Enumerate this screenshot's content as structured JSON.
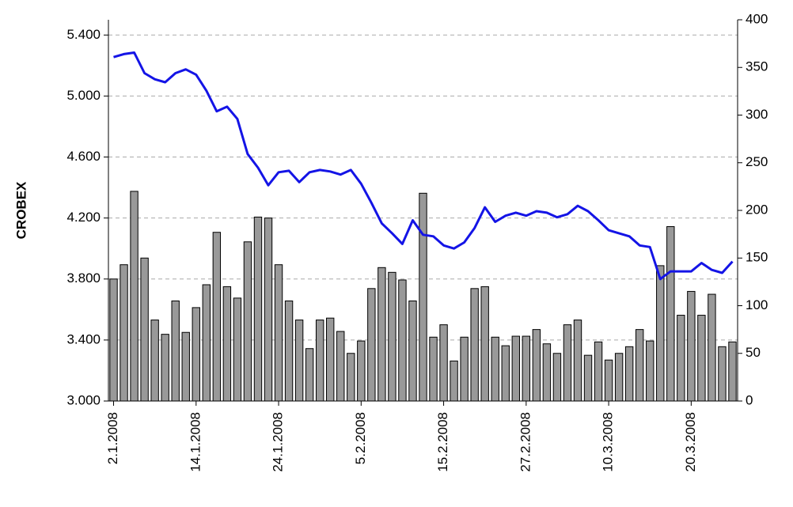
{
  "chart_data": {
    "type": "bar-line",
    "y_label": "CROBEX",
    "categories": [
      "2.1.2008",
      null,
      null,
      null,
      null,
      null,
      null,
      null,
      "14.1.2008",
      null,
      null,
      null,
      null,
      null,
      null,
      null,
      "24.1.2008",
      null,
      null,
      null,
      null,
      null,
      null,
      null,
      "5.2.2008",
      null,
      null,
      null,
      null,
      null,
      null,
      null,
      "15.2.2008",
      null,
      null,
      null,
      null,
      null,
      null,
      null,
      "27.2.2008",
      null,
      null,
      null,
      null,
      null,
      null,
      null,
      "10.3.2008",
      null,
      null,
      null,
      null,
      null,
      null,
      null,
      "20.3.2008",
      null,
      null,
      null,
      null
    ],
    "series": [
      {
        "kind": "bar",
        "axis": "y2",
        "color": "#999999",
        "values": [
          128,
          143,
          220,
          150,
          85,
          70,
          105,
          72,
          98,
          122,
          177,
          120,
          108,
          167,
          193,
          192,
          143,
          105,
          85,
          55,
          85,
          87,
          73,
          50,
          63,
          118,
          140,
          135,
          127,
          105,
          218,
          67,
          80,
          42,
          67,
          118,
          120,
          67,
          58,
          68,
          68,
          75,
          60,
          50,
          80,
          85,
          48,
          62,
          43,
          50,
          57,
          75,
          63,
          142,
          183,
          90,
          115,
          90,
          112,
          57,
          62
        ]
      },
      {
        "kind": "line",
        "axis": "y",
        "color": "#1414e6",
        "values": [
          5255,
          5275,
          5285,
          5150,
          5110,
          5090,
          5150,
          5175,
          5140,
          5035,
          4900,
          4930,
          4850,
          4620,
          4530,
          4415,
          4500,
          4510,
          4435,
          4500,
          4515,
          4505,
          4485,
          4515,
          4425,
          4300,
          4165,
          4100,
          4030,
          4185,
          4090,
          4080,
          4020,
          4000,
          4040,
          4135,
          4270,
          4175,
          4215,
          4235,
          4215,
          4245,
          4235,
          4205,
          4225,
          4280,
          4245,
          4185,
          4120,
          4100,
          4080,
          4020,
          4010,
          3800,
          3850,
          3850,
          3850,
          3905,
          3860,
          3840,
          3915
        ]
      }
    ],
    "ylim": [
      3000,
      5500
    ],
    "yticks": [
      {
        "value": 3000,
        "label": "3.000"
      },
      {
        "value": 3400,
        "label": "3.400"
      },
      {
        "value": 3800,
        "label": "3.800"
      },
      {
        "value": 4200,
        "label": "4.200"
      },
      {
        "value": 4600,
        "label": "4.600"
      },
      {
        "value": 5000,
        "label": "5.000"
      },
      {
        "value": 5400,
        "label": "5.400"
      }
    ],
    "y2lim": [
      0,
      400
    ],
    "y2ticks": [
      0,
      50,
      100,
      150,
      200,
      250,
      300,
      350,
      400
    ],
    "grid": true
  }
}
